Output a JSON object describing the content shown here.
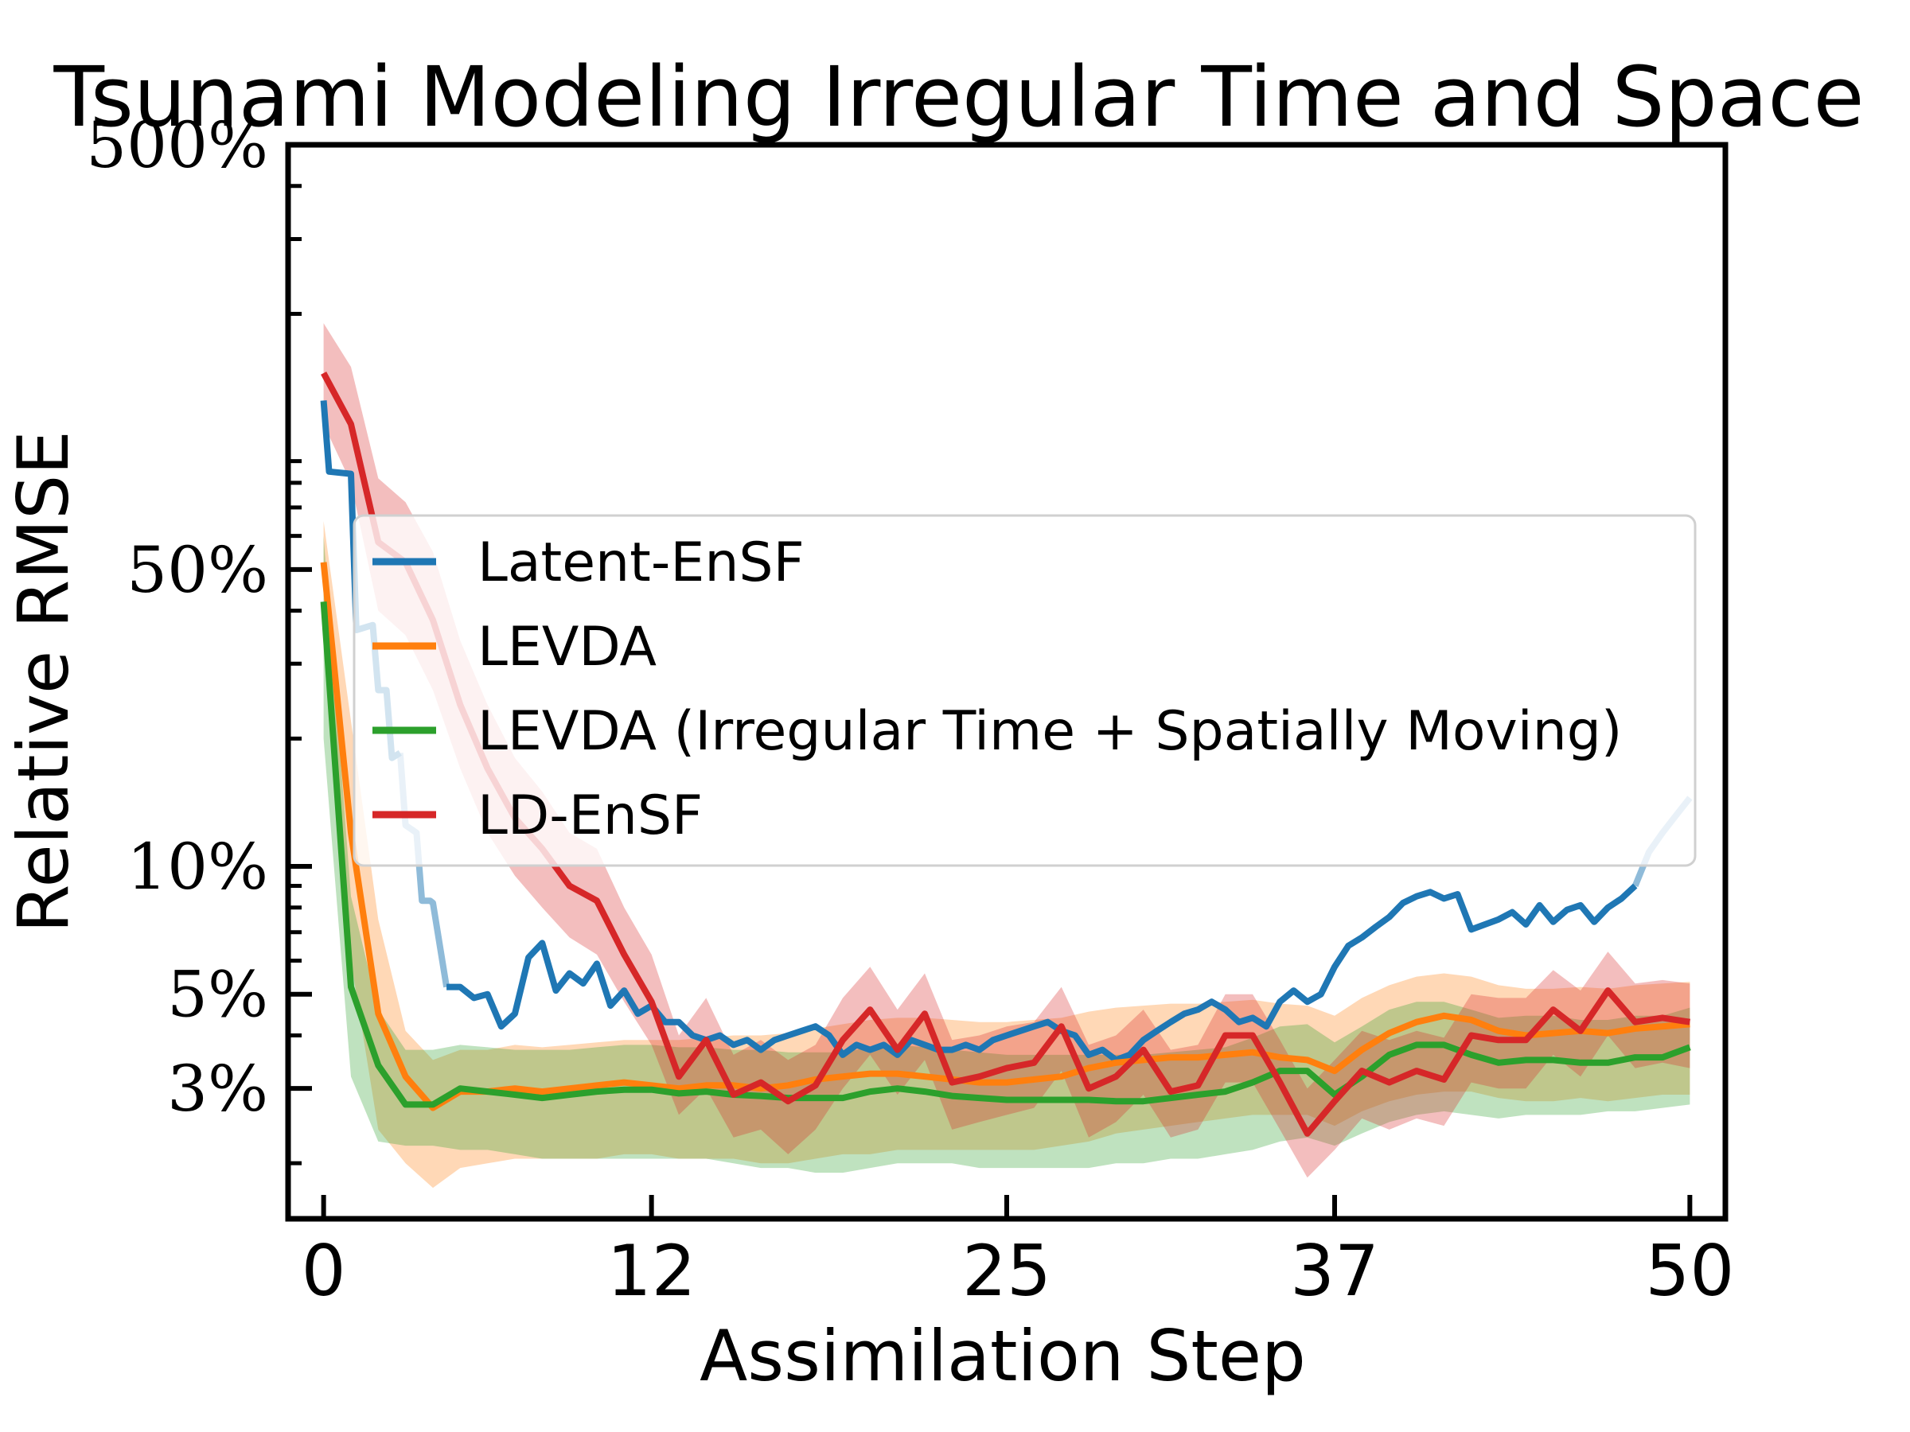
{
  "chart_data": {
    "type": "line",
    "title": "Tsunami Modeling Irregular Time and Space",
    "xlabel": "Assimilation Step",
    "ylabel": "Relative RMSE",
    "yscale": "log",
    "xlim": [
      -1.3,
      51.3
    ],
    "ylim": [
      1.48,
      500
    ],
    "xticks": [
      0,
      12,
      25,
      37,
      50
    ],
    "xtick_labels": [
      "0",
      "12",
      "25",
      "37",
      "50"
    ],
    "yticks": [
      3,
      5,
      10,
      50,
      500
    ],
    "ytick_labels": [
      "3%",
      "5%",
      "10%",
      "50%",
      "500%"
    ],
    "minor_yticks": [
      2,
      4,
      6,
      7,
      8,
      9,
      20,
      30,
      40,
      60,
      70,
      80,
      90,
      200,
      300,
      400
    ],
    "legend_position": "center-right",
    "series": [
      {
        "name": "Latent-EnSF",
        "color": "#1f77b4",
        "x": [
          0,
          0.2,
          1,
          1.2,
          1.8,
          2,
          2.3,
          2.5,
          2.8,
          3.0,
          3.4,
          3.6,
          3.9,
          4.0,
          4.5,
          5.0,
          5.5,
          6.0,
          6.5,
          7.0,
          7.5,
          8.0,
          8.5,
          9.0,
          9.5,
          10.0,
          10.5,
          11.0,
          11.5,
          12.0,
          12.5,
          13.0,
          13.5,
          14.0,
          14.5,
          15.0,
          15.5,
          16.0,
          16.5,
          17.0,
          17.5,
          18.0,
          18.5,
          19.0,
          19.5,
          20.0,
          20.5,
          21.0,
          21.5,
          22.0,
          22.5,
          23.0,
          23.5,
          24.0,
          24.5,
          25.0,
          25.5,
          26.0,
          26.5,
          27.0,
          27.5,
          28.0,
          28.5,
          29.0,
          29.5,
          30.0,
          30.5,
          31.0,
          31.5,
          32.0,
          32.5,
          33.0,
          33.5,
          34.0,
          34.5,
          35.0,
          35.5,
          36.0,
          36.5,
          37.0,
          37.5,
          38.0,
          38.5,
          39.0,
          39.5,
          40.0,
          40.5,
          41.0,
          41.5,
          42.0,
          42.5,
          43.0,
          43.5,
          44.0,
          44.5,
          45.0,
          45.5,
          46.0,
          46.5,
          47.0,
          47.5,
          48.0,
          48.5,
          49.0,
          49.5,
          50.0
        ],
        "y": [
          125,
          85,
          84,
          36,
          37,
          26,
          26,
          18,
          18.5,
          12.5,
          12,
          8.3,
          8.3,
          8.2,
          5.2,
          5.2,
          4.9,
          5.0,
          4.2,
          4.5,
          6.1,
          6.6,
          5.1,
          5.6,
          5.3,
          5.9,
          4.7,
          5.1,
          4.5,
          4.7,
          4.3,
          4.3,
          4.0,
          3.9,
          4.0,
          3.8,
          3.9,
          3.7,
          3.9,
          4.0,
          4.1,
          4.2,
          4.0,
          3.6,
          3.8,
          3.7,
          3.8,
          3.6,
          3.9,
          3.8,
          3.7,
          3.7,
          3.8,
          3.7,
          3.9,
          4.0,
          4.1,
          4.2,
          4.3,
          4.1,
          4.0,
          3.6,
          3.7,
          3.5,
          3.6,
          3.9,
          4.1,
          4.3,
          4.5,
          4.6,
          4.8,
          4.6,
          4.3,
          4.4,
          4.2,
          4.8,
          5.1,
          4.8,
          5.0,
          5.8,
          6.5,
          6.8,
          7.2,
          7.6,
          8.2,
          8.5,
          8.7,
          8.4,
          8.6,
          7.1,
          7.3,
          7.5,
          7.8,
          7.3,
          8.1,
          7.4,
          7.9,
          8.1,
          7.4,
          8.0,
          8.4,
          9.0,
          10.8,
          12.0,
          13.2,
          14.5
        ]
      },
      {
        "name": "LEVDA",
        "color": "#ff7f0e",
        "x": [
          0,
          1,
          2,
          3,
          4,
          5,
          6,
          7,
          8,
          9,
          10,
          11,
          12,
          13,
          14,
          15,
          16,
          17,
          18,
          19,
          20,
          21,
          22,
          23,
          24,
          25,
          26,
          27,
          28,
          29,
          30,
          31,
          32,
          33,
          34,
          35,
          36,
          37,
          38,
          39,
          40,
          41,
          42,
          43,
          44,
          45,
          46,
          47,
          48,
          49,
          50
        ],
        "y": [
          52,
          12,
          4.5,
          3.2,
          2.7,
          2.95,
          2.95,
          3.0,
          2.95,
          3.0,
          3.05,
          3.1,
          3.05,
          3.0,
          3.05,
          3.05,
          3.0,
          3.05,
          3.15,
          3.2,
          3.25,
          3.25,
          3.2,
          3.15,
          3.1,
          3.1,
          3.15,
          3.2,
          3.35,
          3.45,
          3.5,
          3.55,
          3.55,
          3.6,
          3.65,
          3.55,
          3.5,
          3.3,
          3.7,
          4.05,
          4.3,
          4.45,
          4.35,
          4.1,
          4.0,
          4.05,
          4.1,
          4.05,
          4.15,
          4.2,
          4.25
        ],
        "band_low": [
          40,
          6,
          2.4,
          2.0,
          1.75,
          1.95,
          2.0,
          2.05,
          2.05,
          2.05,
          2.05,
          2.1,
          2.1,
          2.05,
          2.05,
          2.05,
          2.0,
          2.0,
          2.05,
          2.1,
          2.1,
          2.15,
          2.15,
          2.15,
          2.15,
          2.15,
          2.15,
          2.2,
          2.25,
          2.35,
          2.4,
          2.45,
          2.5,
          2.55,
          2.6,
          2.6,
          2.6,
          2.45,
          2.65,
          2.8,
          2.9,
          2.95,
          2.95,
          2.85,
          2.8,
          2.8,
          2.85,
          2.8,
          2.85,
          2.9,
          2.9
        ],
        "band_high": [
          65,
          22,
          7.5,
          4.1,
          3.5,
          3.7,
          3.7,
          3.8,
          3.75,
          3.8,
          3.85,
          3.9,
          3.9,
          3.9,
          3.95,
          4.0,
          4.0,
          4.05,
          4.15,
          4.25,
          4.35,
          4.4,
          4.4,
          4.35,
          4.3,
          4.3,
          4.35,
          4.4,
          4.55,
          4.65,
          4.7,
          4.75,
          4.75,
          4.8,
          4.85,
          4.75,
          4.7,
          4.45,
          4.9,
          5.25,
          5.5,
          5.6,
          5.5,
          5.25,
          5.15,
          5.15,
          5.2,
          5.15,
          5.25,
          5.3,
          5.35
        ]
      },
      {
        "name": "LEVDA (Irregular Time + Spatially Moving)",
        "color": "#2ca02c",
        "x": [
          0,
          1,
          2,
          3,
          4,
          5,
          6,
          7,
          8,
          9,
          10,
          11,
          12,
          13,
          14,
          15,
          16,
          17,
          18,
          19,
          20,
          21,
          22,
          23,
          24,
          25,
          26,
          27,
          28,
          29,
          30,
          31,
          32,
          33,
          34,
          35,
          36,
          37,
          38,
          39,
          40,
          41,
          42,
          43,
          44,
          45,
          46,
          47,
          48,
          49,
          50
        ],
        "y": [
          42,
          5.2,
          3.4,
          2.75,
          2.75,
          3.0,
          2.95,
          2.9,
          2.85,
          2.9,
          2.95,
          2.98,
          2.98,
          2.92,
          2.95,
          2.9,
          2.88,
          2.85,
          2.85,
          2.85,
          2.95,
          3.0,
          2.95,
          2.88,
          2.85,
          2.82,
          2.82,
          2.82,
          2.82,
          2.8,
          2.8,
          2.85,
          2.9,
          2.95,
          3.1,
          3.3,
          3.3,
          2.9,
          3.2,
          3.6,
          3.8,
          3.8,
          3.6,
          3.45,
          3.5,
          3.5,
          3.45,
          3.45,
          3.55,
          3.55,
          3.75
        ],
        "band_low": [
          20,
          3.2,
          2.25,
          2.2,
          2.2,
          2.15,
          2.15,
          2.1,
          2.05,
          2.05,
          2.05,
          2.05,
          2.05,
          2.05,
          2.05,
          2.0,
          1.95,
          1.95,
          1.9,
          1.9,
          1.95,
          2.0,
          2.0,
          2.0,
          1.95,
          1.95,
          1.95,
          1.95,
          1.95,
          2.0,
          2.0,
          2.05,
          2.05,
          2.1,
          2.15,
          2.25,
          2.3,
          2.2,
          2.35,
          2.5,
          2.6,
          2.65,
          2.6,
          2.55,
          2.6,
          2.6,
          2.6,
          2.65,
          2.65,
          2.7,
          2.75
        ],
        "band_high": [
          60,
          8.5,
          4.6,
          3.7,
          3.7,
          3.8,
          3.75,
          3.7,
          3.7,
          3.7,
          3.75,
          3.8,
          3.8,
          3.75,
          3.75,
          3.7,
          3.7,
          3.65,
          3.65,
          3.65,
          3.75,
          3.8,
          3.75,
          3.7,
          3.65,
          3.6,
          3.6,
          3.6,
          3.6,
          3.6,
          3.6,
          3.65,
          3.7,
          3.75,
          3.95,
          4.2,
          4.25,
          3.85,
          4.2,
          4.6,
          4.8,
          4.8,
          4.6,
          4.4,
          4.45,
          4.45,
          4.35,
          4.35,
          4.45,
          4.45,
          4.65
        ]
      },
      {
        "name": "LD-EnSF",
        "color": "#d62728",
        "x": [
          0,
          1,
          2,
          3,
          4,
          5,
          6,
          7,
          8,
          9,
          10,
          11,
          12,
          13,
          14,
          15,
          16,
          17,
          18,
          19,
          20,
          21,
          22,
          23,
          24,
          25,
          26,
          27,
          28,
          29,
          30,
          31,
          32,
          33,
          34,
          35,
          36,
          37,
          38,
          39,
          40,
          41,
          42,
          43,
          44,
          45,
          46,
          47,
          48,
          49,
          50
        ],
        "y": [
          145,
          110,
          58,
          52,
          38,
          24,
          17,
          13,
          11,
          9.0,
          8.3,
          6.2,
          4.8,
          3.2,
          3.9,
          2.9,
          3.1,
          2.8,
          3.05,
          3.9,
          4.6,
          3.7,
          4.5,
          3.1,
          3.2,
          3.35,
          3.45,
          4.2,
          3.0,
          3.2,
          3.7,
          2.95,
          3.05,
          4.0,
          4.0,
          3.1,
          2.35,
          2.8,
          3.3,
          3.1,
          3.3,
          3.15,
          4.0,
          3.9,
          3.9,
          4.6,
          4.1,
          5.1,
          4.3,
          4.4,
          4.3
        ],
        "band_low": [
          110,
          80,
          40,
          35,
          26,
          17,
          12,
          9.5,
          8.0,
          6.8,
          6.2,
          4.8,
          3.8,
          2.6,
          3.0,
          2.3,
          2.4,
          2.1,
          2.4,
          3.0,
          3.6,
          2.9,
          3.5,
          2.4,
          2.5,
          2.6,
          2.7,
          3.3,
          2.3,
          2.5,
          2.9,
          2.3,
          2.4,
          3.1,
          3.1,
          2.4,
          1.85,
          2.15,
          2.55,
          2.4,
          2.55,
          2.45,
          3.1,
          3.0,
          3.0,
          3.6,
          3.2,
          4.0,
          3.35,
          3.45,
          3.35
        ],
        "band_high": [
          190,
          150,
          82,
          72,
          55,
          34,
          24,
          18,
          15,
          12,
          11,
          8.0,
          6.2,
          4.0,
          4.9,
          3.6,
          3.9,
          3.5,
          3.8,
          4.9,
          5.8,
          4.6,
          5.6,
          3.9,
          4.0,
          4.2,
          4.3,
          5.2,
          3.8,
          4.0,
          4.6,
          3.7,
          3.8,
          5.0,
          5.0,
          3.9,
          3.0,
          3.5,
          4.1,
          3.9,
          4.1,
          3.95,
          5.0,
          4.9,
          4.9,
          5.7,
          5.1,
          6.3,
          5.3,
          5.4,
          5.3
        ]
      }
    ]
  }
}
